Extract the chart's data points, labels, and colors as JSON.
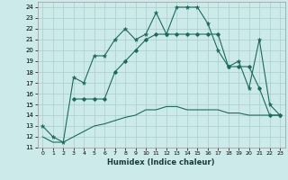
{
  "xlabel": "Humidex (Indice chaleur)",
  "bg_color": "#cceaea",
  "grid_color": "#aacccc",
  "line_color": "#1a6b5a",
  "xlim": [
    -0.5,
    23.5
  ],
  "ylim": [
    11,
    24.5
  ],
  "x_ticks": [
    0,
    1,
    2,
    3,
    4,
    5,
    6,
    7,
    8,
    9,
    10,
    11,
    12,
    13,
    14,
    15,
    16,
    17,
    18,
    19,
    20,
    21,
    22,
    23
  ],
  "y_ticks": [
    11,
    12,
    13,
    14,
    15,
    16,
    17,
    18,
    19,
    20,
    21,
    22,
    23,
    24
  ],
  "line1_x": [
    0,
    1,
    2,
    3,
    4,
    5,
    6,
    7,
    8,
    9,
    10,
    11,
    12,
    13,
    14,
    15,
    16,
    17,
    18,
    19,
    20,
    21,
    22,
    23
  ],
  "line1_y": [
    13,
    12,
    11.5,
    17.5,
    17,
    19.5,
    19.5,
    21,
    22,
    21,
    21.5,
    23.5,
    21.5,
    24,
    24,
    24,
    22.5,
    20,
    18.5,
    19,
    16.5,
    21,
    15,
    14
  ],
  "line2_x": [
    3,
    4,
    5,
    6,
    7,
    8,
    9,
    10,
    11,
    12,
    13,
    14,
    15,
    16,
    17,
    18,
    19,
    20,
    21,
    22,
    23
  ],
  "line2_y": [
    15.5,
    15.5,
    15.5,
    15.5,
    18,
    19,
    20,
    21,
    21.5,
    21.5,
    21.5,
    21.5,
    21.5,
    21.5,
    21.5,
    18.5,
    18.5,
    18.5,
    16.5,
    14,
    14
  ],
  "line3_x": [
    0,
    1,
    2,
    3,
    4,
    5,
    6,
    7,
    8,
    9,
    10,
    11,
    12,
    13,
    14,
    15,
    16,
    17,
    18,
    19,
    20,
    21,
    22,
    23
  ],
  "line3_y": [
    12,
    11.5,
    11.5,
    12,
    12.5,
    13,
    13.2,
    13.5,
    13.8,
    14,
    14.5,
    14.5,
    14.8,
    14.8,
    14.5,
    14.5,
    14.5,
    14.5,
    14.2,
    14.2,
    14,
    14,
    14,
    14
  ]
}
